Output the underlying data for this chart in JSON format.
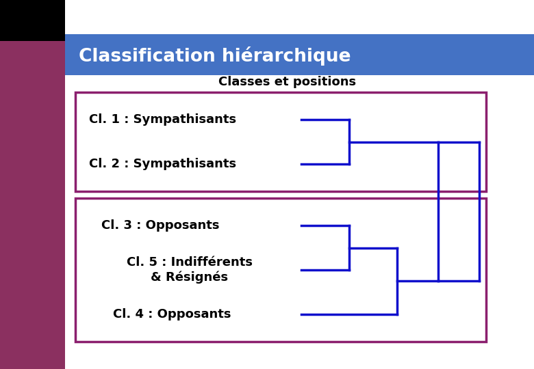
{
  "title": "Classification hiérarchique",
  "subtitle": "Classes et positions",
  "title_bg": "#4472C4",
  "title_color": "#FFFFFF",
  "subtitle_color": "#000000",
  "left_bar_color": "#8B3060",
  "black_box_color": "#000000",
  "background_color": "#FFFFFF",
  "box_border_color": "#8B1F6E",
  "dendrogram_color": "#1010CC",
  "classes_group1": [
    "Cl. 1 : Sympathisants",
    "Cl. 2 : Sympathisants"
  ],
  "classes_group2": [
    "Cl. 3 : Opposants",
    "Cl. 5 : Indifférents\n& Résignés",
    "Cl. 4 : Opposants"
  ],
  "figw": 7.8,
  "figh": 5.4,
  "dpi": 100
}
